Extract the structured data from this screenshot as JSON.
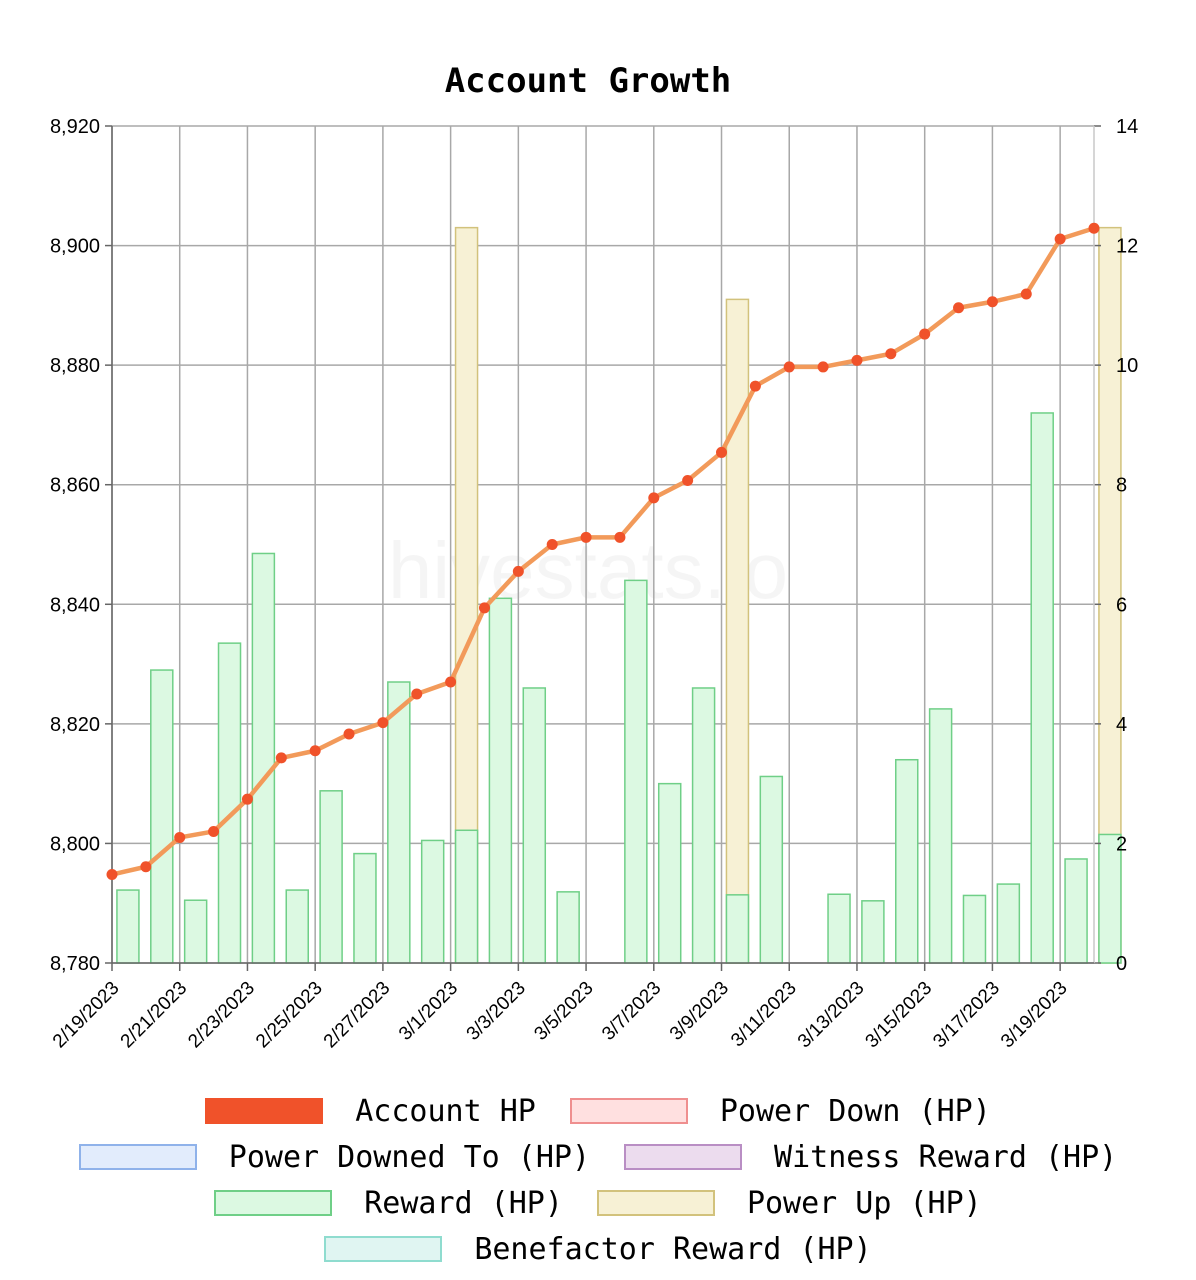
{
  "chart_data": {
    "type": "bar+line",
    "title": "Account Growth",
    "watermark": "hivestats.io",
    "x_tick_labels": [
      "2/19/2023",
      "2/21/2023",
      "2/23/2023",
      "2/25/2023",
      "2/27/2023",
      "3/1/2023",
      "3/3/2023",
      "3/5/2023",
      "3/7/2023",
      "3/9/2023",
      "3/11/2023",
      "3/13/2023",
      "3/15/2023",
      "3/17/2023",
      "3/19/2023"
    ],
    "dates": [
      "2/19/2023",
      "2/20/2023",
      "2/21/2023",
      "2/22/2023",
      "2/23/2023",
      "2/24/2023",
      "2/25/2023",
      "2/26/2023",
      "2/27/2023",
      "2/28/2023",
      "3/1/2023",
      "3/2/2023",
      "3/3/2023",
      "3/4/2023",
      "3/5/2023",
      "3/6/2023",
      "3/7/2023",
      "3/8/2023",
      "3/9/2023",
      "3/10/2023",
      "3/11/2023",
      "3/12/2023",
      "3/13/2023",
      "3/14/2023",
      "3/15/2023",
      "3/16/2023",
      "3/17/2023",
      "3/18/2023",
      "3/19/2023",
      "3/20/2023"
    ],
    "y_left": {
      "min": 8780,
      "max": 8920,
      "ticks": [
        "8,780",
        "8,800",
        "8,820",
        "8,840",
        "8,860",
        "8,880",
        "8,900",
        "8,920"
      ]
    },
    "y_right": {
      "min": 0,
      "max": 14,
      "ticks": [
        "0",
        "2",
        "4",
        "6",
        "8",
        "10",
        "12",
        "14"
      ]
    },
    "grid": true,
    "legend_position": "bottom",
    "series": [
      {
        "name": "Account HP",
        "axis": "left",
        "kind": "line",
        "color": "#f0522a",
        "line_color": "#f29a5a",
        "values": [
          8794.8,
          8796.1,
          8801.0,
          8802.0,
          8807.4,
          8814.3,
          8815.5,
          8818.3,
          8820.2,
          8825.0,
          8827.0,
          8839.4,
          8845.5,
          8850.0,
          8851.2,
          8851.2,
          8857.8,
          8860.7,
          8865.4,
          8876.5,
          8879.7,
          8879.7,
          8880.8,
          8881.9,
          8885.2,
          8889.6,
          8890.6,
          8891.9,
          8901.1,
          8902.9
        ]
      },
      {
        "name": "Power Up (HP)",
        "axis": "right",
        "kind": "bar",
        "fill": "#f7f1d5",
        "stroke": "#d2c27c",
        "values": [
          null,
          null,
          null,
          null,
          null,
          null,
          null,
          null,
          null,
          null,
          12.3,
          null,
          null,
          null,
          null,
          null,
          null,
          null,
          11.1,
          null,
          null,
          null,
          null,
          null,
          null,
          null,
          null,
          null,
          null,
          12.3
        ]
      },
      {
        "name": "Reward (HP)",
        "axis": "right",
        "kind": "bar",
        "fill": "#dcf9e2",
        "stroke": "#6fcf87",
        "values": [
          1.22,
          4.9,
          1.05,
          5.35,
          6.85,
          1.22,
          2.88,
          1.83,
          4.7,
          2.05,
          2.22,
          6.1,
          4.6,
          1.19,
          null,
          6.4,
          3.0,
          4.6,
          1.14,
          3.12,
          null,
          1.15,
          1.04,
          3.4,
          4.25,
          1.13,
          1.32,
          9.2,
          1.74,
          2.15
        ]
      }
    ],
    "legend": [
      {
        "label": "Account HP",
        "fill": "#f0522a",
        "stroke": "#f0522a"
      },
      {
        "label": "Power Down (HP)",
        "fill": "#ffe0e0",
        "stroke": "#ef8f8f"
      },
      {
        "label": "Power Downed To (HP)",
        "fill": "#e2ecfc",
        "stroke": "#8fb2ea"
      },
      {
        "label": "Witness Reward (HP)",
        "fill": "#ecdcee",
        "stroke": "#b98ec4"
      },
      {
        "label": "Reward (HP)",
        "fill": "#dcf9e2",
        "stroke": "#6fcf87"
      },
      {
        "label": "Power Up (HP)",
        "fill": "#f7f1d5",
        "stroke": "#d2c27c"
      },
      {
        "label": "Benefactor Reward (HP)",
        "fill": "#e0f5f2",
        "stroke": "#8fdccf"
      }
    ]
  }
}
